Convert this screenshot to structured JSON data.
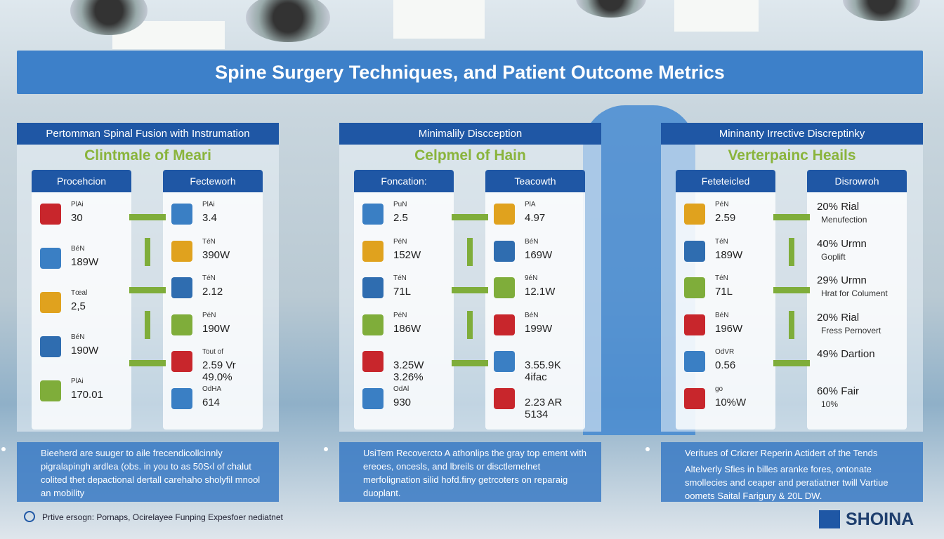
{
  "title": "Spine Surgery Techniques, and Patient Outcome Metrics",
  "panels": [
    {
      "header": "Pertomman Spinal Fusion with Instrumation",
      "subtitle": "Clintmale of Meari",
      "cards": [
        {
          "title": "Procehcion",
          "items": [
            {
              "label": "PlAi",
              "value": "30"
            },
            {
              "label": "BéN",
              "value": "189W"
            },
            {
              "label": "Tœal",
              "value": "2,5"
            },
            {
              "label": "BéN",
              "value": "190W"
            },
            {
              "label": "PlAi",
              "value": "170.01"
            }
          ]
        },
        {
          "title": "Fecteworh",
          "items": [
            {
              "label": "PlAi",
              "value": "3.4"
            },
            {
              "label": "TéN",
              "value": "390W"
            },
            {
              "label": "TéN",
              "value": "2.12"
            },
            {
              "label": "PéN",
              "value": "190W"
            },
            {
              "label": "Tout of",
              "value": "2.59 Vr 49.0%"
            },
            {
              "label": "OdHA",
              "value": "614"
            }
          ]
        }
      ],
      "notes": [
        "Bieeherd are suuger to aile frecendicollcinnly pigralapingh ardlea (obs. in you to as 50S‹l of chalut colited thet depactional dertall carehaho sholyfil mnool an mobility"
      ]
    },
    {
      "header": "Minimalily Discception",
      "subtitle": "Celpmel of Hain",
      "cards": [
        {
          "title": "Foncation:",
          "items": [
            {
              "label": "PuN",
              "value": "2.5"
            },
            {
              "label": "PéN",
              "value": "152W"
            },
            {
              "label": "TéN",
              "value": "71L"
            },
            {
              "label": "PéN",
              "value": "186W"
            },
            {
              "value": "3.25W 3.26%"
            },
            {
              "label": "OdAl",
              "value": "930"
            }
          ]
        },
        {
          "title": "Teacowth",
          "items": [
            {
              "label": "PlA",
              "value": "4.97"
            },
            {
              "label": "BéN",
              "value": "169W"
            },
            {
              "label": "9éN",
              "value": "12.1W"
            },
            {
              "label": "BéN",
              "value": "199W"
            },
            {
              "value": "3.55.9K 4ifac"
            },
            {
              "value": "2.23 AR 5134"
            }
          ]
        }
      ],
      "notes": [
        "UsiTem Recovercto A athonlips the gray top ement with ereoes, oncesls, and lbreils or disctlemelnet merfolignation silid hofd.finy getrcoters on reparaig duoplant."
      ]
    },
    {
      "header": "Mininanty Irrective Discreptinky",
      "subtitle": "Verterpainc Heails",
      "cards": [
        {
          "title": "Feteteicled",
          "items": [
            {
              "label": "PéN",
              "value": "2.59"
            },
            {
              "label": "TéN",
              "value": "189W"
            },
            {
              "label": "TéN",
              "value": "71L"
            },
            {
              "label": "BéN",
              "value": "196W"
            },
            {
              "label": "OdVR",
              "value": "0.56"
            },
            {
              "label": "go",
              "value": "10%W"
            }
          ]
        },
        {
          "title": "Disrowroh",
          "items": [
            {
              "label": "20% Rial",
              "value": "Menufection"
            },
            {
              "label": "40% Urmn",
              "value": "Goplift"
            },
            {
              "label": "29% Urmn",
              "value": "Hrat for Colument"
            },
            {
              "label": "20% Rial",
              "value": "Fress Pernovert"
            },
            {
              "label": "49% Dartion"
            },
            {
              "label": "60% Fair",
              "value": "10%"
            }
          ]
        }
      ],
      "notes": [
        "Veritues of Cricrer Reperin Actidert of the Tends",
        "Altelverly Sfies in billes aranke fores, ontonate smollecies and ceaper and peratiatner twill Vartiue oomets Saital Farigury & 20L DW."
      ]
    }
  ],
  "footer": "Prtive ersogn: Pornaps, Ocirelayee Funping Expesfoer nediatnet",
  "brand": "SHOINA"
}
